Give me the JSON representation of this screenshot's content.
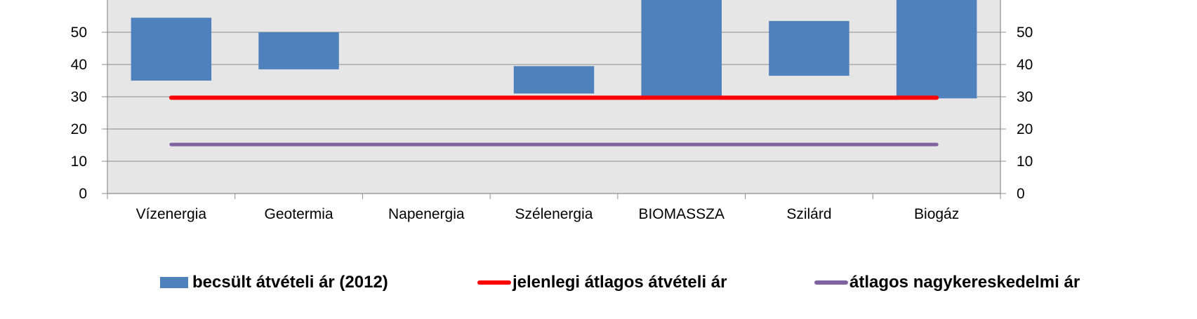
{
  "chart_data": {
    "type": "bar",
    "subtype": "floating-bar",
    "categories": [
      "Vízenergia",
      "Geotermia",
      "Napenergia",
      "Szélenergia",
      "BIOMASSZA",
      "Szilárd",
      "Biogáz"
    ],
    "series": [
      {
        "name": "becsült átvételi ár (2012)",
        "color": "#4F81BD",
        "low": [
          35,
          38.5,
          null,
          31,
          30,
          36.5,
          29.5
        ],
        "high": [
          54.5,
          50,
          null,
          39.5,
          60,
          53.5,
          60
        ]
      },
      {
        "name": "jelenlegi átlagos átvételi ár",
        "type": "line",
        "color": "#FF0000",
        "value": 29.7
      },
      {
        "name": "átlagos nagykereskedelmi ár",
        "type": "line",
        "color": "#8064A2",
        "value": 15.2
      }
    ],
    "y_ticks": [
      "0",
      "10",
      "20",
      "30",
      "40",
      "50"
    ],
    "y2_ticks": [
      "0",
      "10",
      "20",
      "30",
      "40",
      "50"
    ],
    "ylim": [
      0,
      55
    ],
    "grid": true,
    "plot_background": "#E6E6E6",
    "legend_position": "bottom"
  }
}
